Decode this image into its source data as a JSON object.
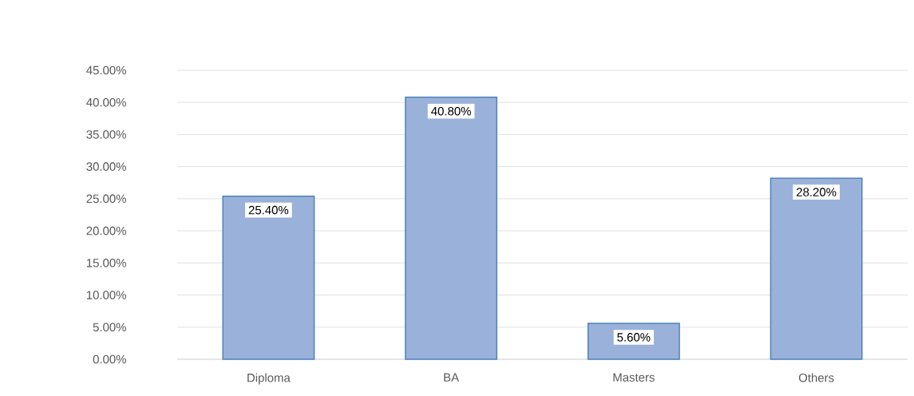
{
  "chart_data": {
    "type": "bar",
    "categories": [
      "Diploma",
      "BA",
      "Masters",
      "Others"
    ],
    "values": [
      25.4,
      40.8,
      5.6,
      28.2
    ],
    "value_labels": [
      "25.40%",
      "40.80%",
      "5.60%",
      "28.20%"
    ],
    "color": "#9ab2d9",
    "ylim": [
      0,
      45
    ],
    "yticks": [
      {
        "value": 0,
        "label": "0.00%"
      },
      {
        "value": 5,
        "label": "5.00%"
      },
      {
        "value": 10,
        "label": "10.00%"
      },
      {
        "value": 15,
        "label": "15.00%"
      },
      {
        "value": 20,
        "label": "20.00%"
      },
      {
        "value": 25,
        "label": "25.00%"
      },
      {
        "value": 30,
        "label": "30.00%"
      },
      {
        "value": 35,
        "label": "35.00%"
      },
      {
        "value": 40,
        "label": "40.00%"
      },
      {
        "value": 45,
        "label": "45.00%"
      }
    ],
    "grid": "y"
  }
}
